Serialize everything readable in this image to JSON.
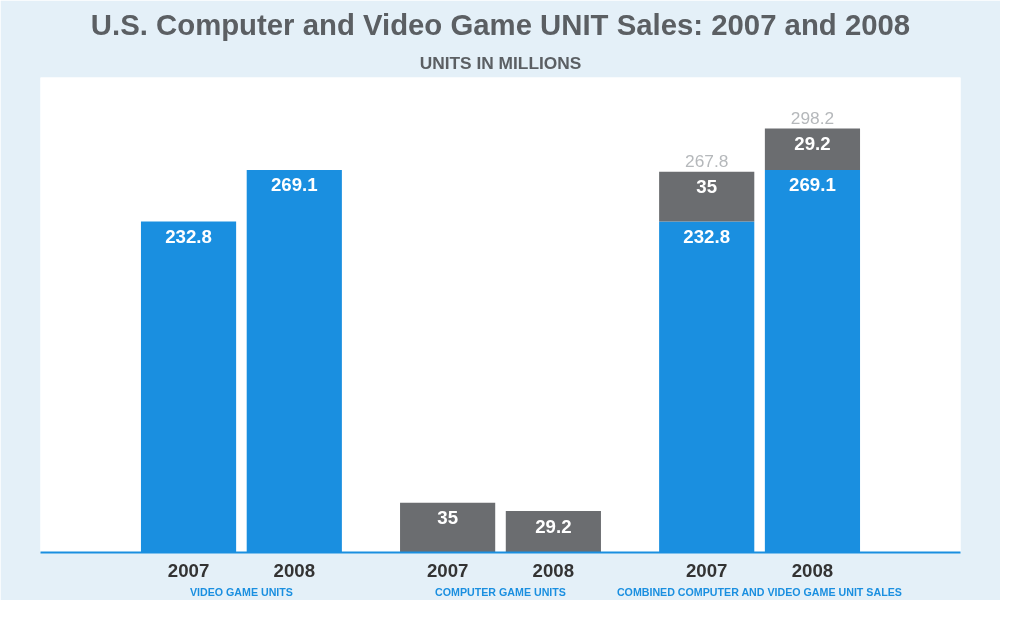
{
  "chart_data": {
    "type": "bar",
    "title": "U.S. Computer and Video Game UNIT Sales: 2007 and 2008",
    "subtitle": "UNITS IN MILLIONS",
    "categories": [
      "2007",
      "2008",
      "2007",
      "2008",
      "2007",
      "2008"
    ],
    "stacked": true,
    "data_labels": true,
    "grid": false,
    "series": [
      {
        "color": "#1a8fe0",
        "values": [
          232.8,
          269.1,
          null,
          null,
          232.8,
          269.1
        ]
      },
      {
        "color": "#6b6d70",
        "values": [
          null,
          null,
          35,
          29.2,
          35,
          29.2
        ]
      }
    ],
    "totals": [
      null,
      null,
      null,
      null,
      "267.8",
      "298.2"
    ],
    "annotations": [
      "VIDEO GAME UNITS",
      "COMPUTER GAME UNITS",
      "COMBINED COMPUTER AND VIDEO GAME UNIT SALES"
    ]
  }
}
